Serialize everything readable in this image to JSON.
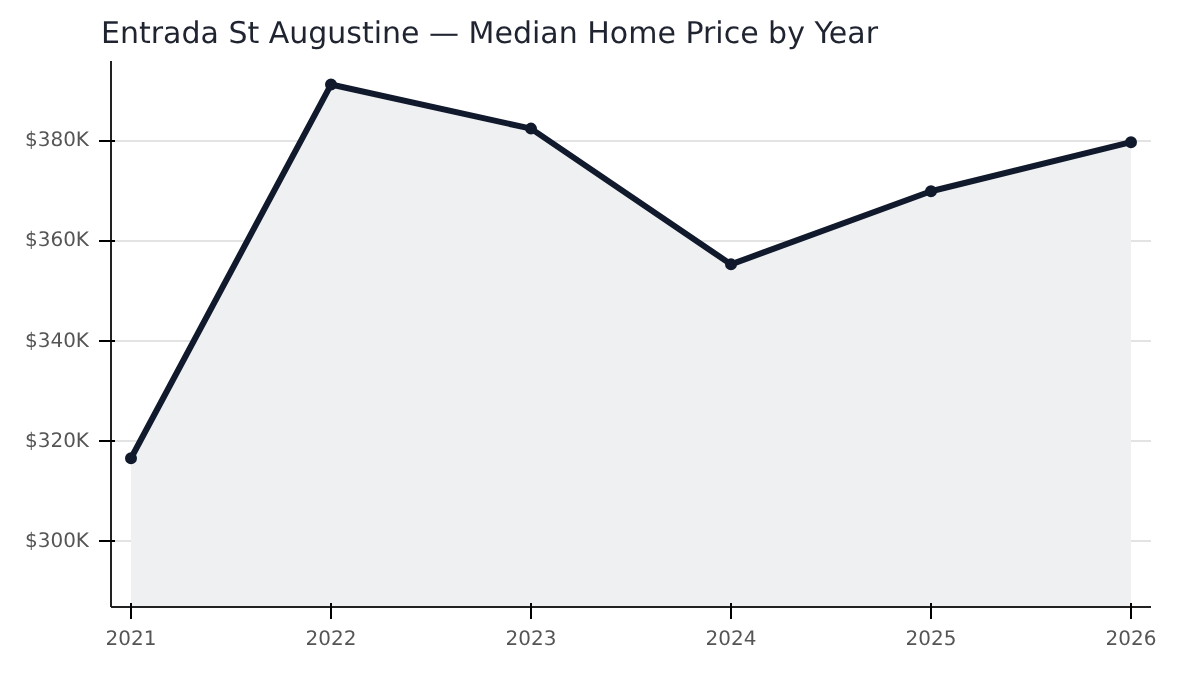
{
  "chart_data": {
    "type": "area",
    "title": "Entrada St Augustine — Median Home Price by Year",
    "x": [
      2021,
      2022,
      2023,
      2024,
      2025,
      2026
    ],
    "series": [
      {
        "color": "#111a2c",
        "values": [
          316.7,
          391.3,
          382.5,
          355.4,
          370.0,
          379.8
        ]
      }
    ],
    "xlim": [
      2020.9,
      2026.1
    ],
    "xticks": [
      2021,
      2022,
      2023,
      2024,
      2025,
      2026
    ],
    "ylim": [
      287,
      396
    ],
    "yticks": [
      {
        "value": 300,
        "label": "$300K"
      },
      {
        "value": 320,
        "label": "$320K"
      },
      {
        "value": 340,
        "label": "$340K"
      },
      {
        "value": 360,
        "label": "$360K"
      },
      {
        "value": 380,
        "label": "$380K"
      }
    ],
    "grid": "y",
    "marker": "circle",
    "line_style": "solid"
  }
}
